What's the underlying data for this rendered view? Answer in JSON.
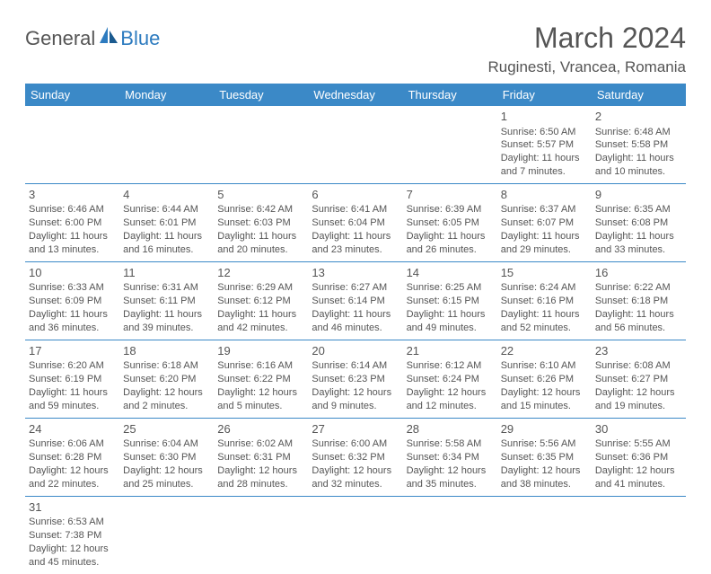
{
  "logo": {
    "part1": "General",
    "part2": "Blue"
  },
  "title": "March 2024",
  "location": "Ruginesti, Vrancea, Romania",
  "colors": {
    "header_bg": "#3b89c7",
    "header_text": "#ffffff",
    "border": "#3b89c7",
    "text": "#555555",
    "brand_blue": "#2d7bbf"
  },
  "weekdays": [
    "Sunday",
    "Monday",
    "Tuesday",
    "Wednesday",
    "Thursday",
    "Friday",
    "Saturday"
  ],
  "weeks": [
    [
      null,
      null,
      null,
      null,
      null,
      {
        "day": "1",
        "sunrise": "Sunrise: 6:50 AM",
        "sunset": "Sunset: 5:57 PM",
        "daylight": "Daylight: 11 hours and 7 minutes."
      },
      {
        "day": "2",
        "sunrise": "Sunrise: 6:48 AM",
        "sunset": "Sunset: 5:58 PM",
        "daylight": "Daylight: 11 hours and 10 minutes."
      }
    ],
    [
      {
        "day": "3",
        "sunrise": "Sunrise: 6:46 AM",
        "sunset": "Sunset: 6:00 PM",
        "daylight": "Daylight: 11 hours and 13 minutes."
      },
      {
        "day": "4",
        "sunrise": "Sunrise: 6:44 AM",
        "sunset": "Sunset: 6:01 PM",
        "daylight": "Daylight: 11 hours and 16 minutes."
      },
      {
        "day": "5",
        "sunrise": "Sunrise: 6:42 AM",
        "sunset": "Sunset: 6:03 PM",
        "daylight": "Daylight: 11 hours and 20 minutes."
      },
      {
        "day": "6",
        "sunrise": "Sunrise: 6:41 AM",
        "sunset": "Sunset: 6:04 PM",
        "daylight": "Daylight: 11 hours and 23 minutes."
      },
      {
        "day": "7",
        "sunrise": "Sunrise: 6:39 AM",
        "sunset": "Sunset: 6:05 PM",
        "daylight": "Daylight: 11 hours and 26 minutes."
      },
      {
        "day": "8",
        "sunrise": "Sunrise: 6:37 AM",
        "sunset": "Sunset: 6:07 PM",
        "daylight": "Daylight: 11 hours and 29 minutes."
      },
      {
        "day": "9",
        "sunrise": "Sunrise: 6:35 AM",
        "sunset": "Sunset: 6:08 PM",
        "daylight": "Daylight: 11 hours and 33 minutes."
      }
    ],
    [
      {
        "day": "10",
        "sunrise": "Sunrise: 6:33 AM",
        "sunset": "Sunset: 6:09 PM",
        "daylight": "Daylight: 11 hours and 36 minutes."
      },
      {
        "day": "11",
        "sunrise": "Sunrise: 6:31 AM",
        "sunset": "Sunset: 6:11 PM",
        "daylight": "Daylight: 11 hours and 39 minutes."
      },
      {
        "day": "12",
        "sunrise": "Sunrise: 6:29 AM",
        "sunset": "Sunset: 6:12 PM",
        "daylight": "Daylight: 11 hours and 42 minutes."
      },
      {
        "day": "13",
        "sunrise": "Sunrise: 6:27 AM",
        "sunset": "Sunset: 6:14 PM",
        "daylight": "Daylight: 11 hours and 46 minutes."
      },
      {
        "day": "14",
        "sunrise": "Sunrise: 6:25 AM",
        "sunset": "Sunset: 6:15 PM",
        "daylight": "Daylight: 11 hours and 49 minutes."
      },
      {
        "day": "15",
        "sunrise": "Sunrise: 6:24 AM",
        "sunset": "Sunset: 6:16 PM",
        "daylight": "Daylight: 11 hours and 52 minutes."
      },
      {
        "day": "16",
        "sunrise": "Sunrise: 6:22 AM",
        "sunset": "Sunset: 6:18 PM",
        "daylight": "Daylight: 11 hours and 56 minutes."
      }
    ],
    [
      {
        "day": "17",
        "sunrise": "Sunrise: 6:20 AM",
        "sunset": "Sunset: 6:19 PM",
        "daylight": "Daylight: 11 hours and 59 minutes."
      },
      {
        "day": "18",
        "sunrise": "Sunrise: 6:18 AM",
        "sunset": "Sunset: 6:20 PM",
        "daylight": "Daylight: 12 hours and 2 minutes."
      },
      {
        "day": "19",
        "sunrise": "Sunrise: 6:16 AM",
        "sunset": "Sunset: 6:22 PM",
        "daylight": "Daylight: 12 hours and 5 minutes."
      },
      {
        "day": "20",
        "sunrise": "Sunrise: 6:14 AM",
        "sunset": "Sunset: 6:23 PM",
        "daylight": "Daylight: 12 hours and 9 minutes."
      },
      {
        "day": "21",
        "sunrise": "Sunrise: 6:12 AM",
        "sunset": "Sunset: 6:24 PM",
        "daylight": "Daylight: 12 hours and 12 minutes."
      },
      {
        "day": "22",
        "sunrise": "Sunrise: 6:10 AM",
        "sunset": "Sunset: 6:26 PM",
        "daylight": "Daylight: 12 hours and 15 minutes."
      },
      {
        "day": "23",
        "sunrise": "Sunrise: 6:08 AM",
        "sunset": "Sunset: 6:27 PM",
        "daylight": "Daylight: 12 hours and 19 minutes."
      }
    ],
    [
      {
        "day": "24",
        "sunrise": "Sunrise: 6:06 AM",
        "sunset": "Sunset: 6:28 PM",
        "daylight": "Daylight: 12 hours and 22 minutes."
      },
      {
        "day": "25",
        "sunrise": "Sunrise: 6:04 AM",
        "sunset": "Sunset: 6:30 PM",
        "daylight": "Daylight: 12 hours and 25 minutes."
      },
      {
        "day": "26",
        "sunrise": "Sunrise: 6:02 AM",
        "sunset": "Sunset: 6:31 PM",
        "daylight": "Daylight: 12 hours and 28 minutes."
      },
      {
        "day": "27",
        "sunrise": "Sunrise: 6:00 AM",
        "sunset": "Sunset: 6:32 PM",
        "daylight": "Daylight: 12 hours and 32 minutes."
      },
      {
        "day": "28",
        "sunrise": "Sunrise: 5:58 AM",
        "sunset": "Sunset: 6:34 PM",
        "daylight": "Daylight: 12 hours and 35 minutes."
      },
      {
        "day": "29",
        "sunrise": "Sunrise: 5:56 AM",
        "sunset": "Sunset: 6:35 PM",
        "daylight": "Daylight: 12 hours and 38 minutes."
      },
      {
        "day": "30",
        "sunrise": "Sunrise: 5:55 AM",
        "sunset": "Sunset: 6:36 PM",
        "daylight": "Daylight: 12 hours and 41 minutes."
      }
    ],
    [
      {
        "day": "31",
        "sunrise": "Sunrise: 6:53 AM",
        "sunset": "Sunset: 7:38 PM",
        "daylight": "Daylight: 12 hours and 45 minutes."
      },
      null,
      null,
      null,
      null,
      null,
      null
    ]
  ]
}
